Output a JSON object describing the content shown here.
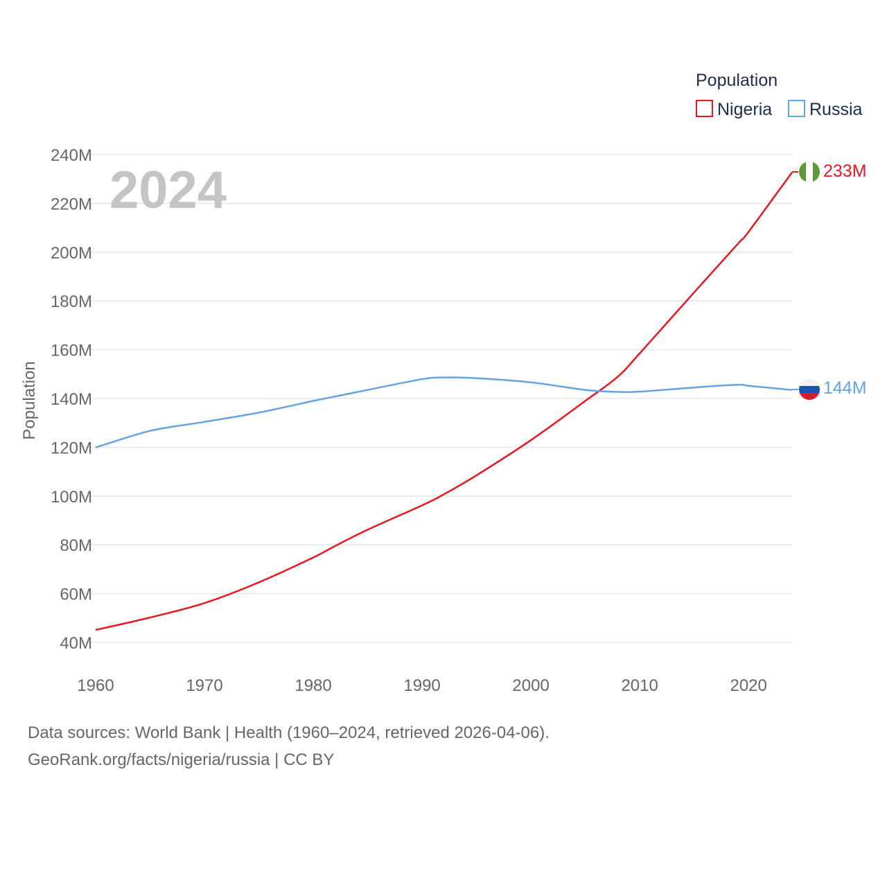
{
  "chart_data": {
    "type": "line",
    "x": [
      1960,
      1965,
      1970,
      1975,
      1980,
      1982,
      1985,
      1990,
      1992,
      1995,
      2000,
      2005,
      2008,
      2010,
      2015,
      2019,
      2020,
      2024
    ],
    "series": [
      {
        "name": "Nigeria",
        "color": "#e8161f",
        "values": [
          45.1,
          50.2,
          56.1,
          64.6,
          74.8,
          79.5,
          86.2,
          96.2,
          100.7,
          108.5,
          122.9,
          139.0,
          149.0,
          158.5,
          183.5,
          203.3,
          208.3,
          232.7
        ],
        "end_label": "233M",
        "flag_icon": "nigeria-flag-icon"
      },
      {
        "name": "Russia",
        "color": "#64a3e3",
        "values": [
          119.9,
          126.7,
          130.4,
          134.2,
          139.0,
          140.8,
          143.5,
          147.9,
          148.6,
          148.3,
          146.6,
          143.5,
          142.7,
          142.8,
          144.5,
          145.6,
          145.2,
          143.5
        ],
        "end_label": "144M",
        "flag_icon": "russia-flag-icon"
      }
    ],
    "ylabel": "Population",
    "ylim": [
      30,
      240
    ],
    "yticks": [
      40,
      60,
      80,
      100,
      120,
      140,
      160,
      180,
      200,
      220,
      240
    ],
    "ytick_labels": [
      "40M",
      "60M",
      "80M",
      "100M",
      "120M",
      "140M",
      "160M",
      "180M",
      "200M",
      "220M",
      "240M"
    ],
    "xlim": [
      1960,
      2024
    ],
    "xticks": [
      1960,
      1970,
      1980,
      1990,
      2000,
      2010,
      2020
    ],
    "xtick_labels": [
      "1960",
      "1970",
      "1980",
      "1990",
      "2000",
      "2010",
      "2020"
    ],
    "year_label": "2024",
    "legend_title": "Population",
    "legend_position": "top-right",
    "grid": true
  },
  "footer": {
    "line1": "Data sources: World Bank | Health (1960–2024, retrieved 2026-04-06).",
    "line2": "GeoRank.org/facts/nigeria/russia | CC BY"
  }
}
